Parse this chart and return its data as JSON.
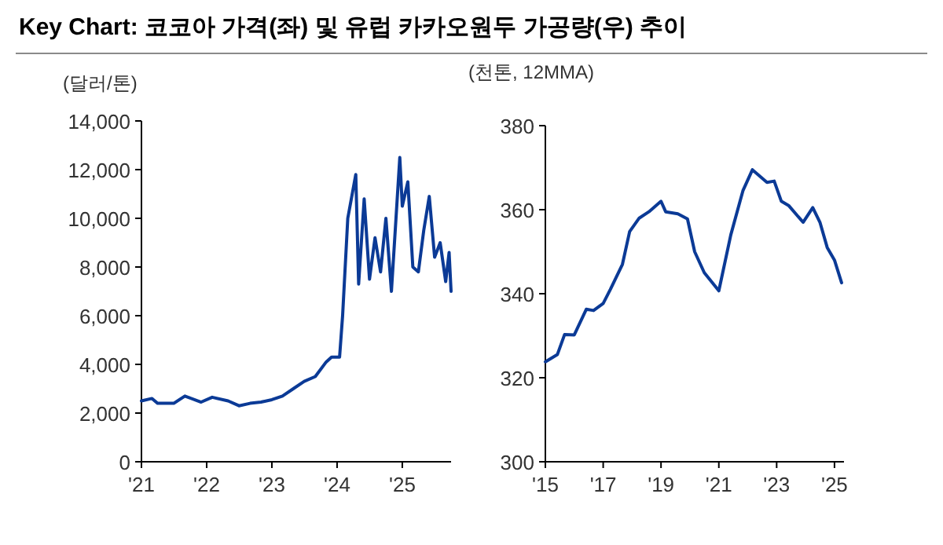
{
  "chart_data": [
    {
      "type": "line",
      "title": "Key Chart: 코코아 가격(좌) 및 유럽 카카오원두 가공량(우) 추이",
      "ylabel": "(달러/톤)",
      "x": [
        "2021-01-01",
        "2021-03-01",
        "2021-04-01",
        "2021-07-01",
        "2021-09-01",
        "2021-12-01",
        "2022-02-01",
        "2022-05-01",
        "2022-07-01",
        "2022-09-01",
        "2022-11-01",
        "2023-01-01",
        "2023-03-01",
        "2023-05-01",
        "2023-07-01",
        "2023-09-01",
        "2023-11-01",
        "2023-12-01",
        "2024-01-15",
        "2024-02-01",
        "2024-03-01",
        "2024-04-15",
        "2024-05-01",
        "2024-06-01",
        "2024-07-01",
        "2024-08-01",
        "2024-09-01",
        "2024-10-01",
        "2024-11-01",
        "2024-12-18",
        "2025-01-01",
        "2025-02-01",
        "2025-03-01",
        "2025-04-01",
        "2025-05-01",
        "2025-06-01",
        "2025-07-01",
        "2025-08-01",
        "2025-09-01",
        "2025-09-20",
        "2025-10-01"
      ],
      "series": [
        {
          "color": "#0b3a96",
          "values": [
            2500,
            2600,
            2400,
            2400,
            2700,
            2450,
            2650,
            2500,
            2300,
            2400,
            2450,
            2550,
            2700,
            3000,
            3300,
            3500,
            4100,
            4300,
            4300,
            6000,
            10000,
            11800,
            7300,
            10800,
            7500,
            9200,
            7800,
            10000,
            7000,
            12500,
            10500,
            11500,
            8000,
            7800,
            9500,
            10900,
            8400,
            9000,
            7400,
            8600,
            7000
          ]
        }
      ],
      "xlim": [
        "2021-01-01",
        "2025-10-01"
      ],
      "xticks": [
        {
          "value": "2021",
          "label": "'21"
        },
        {
          "value": "2022",
          "label": "'22"
        },
        {
          "value": "2023",
          "label": "'23"
        },
        {
          "value": "2024",
          "label": "'24"
        },
        {
          "value": "2025",
          "label": "'25"
        }
      ],
      "ylim": [
        0,
        14000
      ],
      "yticks": [
        0,
        {
          "value": 2000,
          "label": "2,000"
        },
        {
          "value": 4000,
          "label": "4,000"
        },
        {
          "value": 6000,
          "label": "6,000"
        },
        {
          "value": 8000,
          "label": "8,000"
        },
        {
          "value": 10000,
          "label": "10,000"
        },
        {
          "value": 12000,
          "label": "12,000"
        },
        {
          "value": 14000,
          "label": "14,000"
        }
      ],
      "grid": false
    },
    {
      "type": "line",
      "ylabel": "(천톤, 12MMA)",
      "x": [
        "2015-01",
        "2015-06",
        "2015-09",
        "2016-01",
        "2016-06",
        "2016-09",
        "2017-01",
        "2017-04",
        "2017-09",
        "2017-12",
        "2018-04",
        "2018-08",
        "2019-01",
        "2019-03",
        "2019-08",
        "2019-12",
        "2020-03",
        "2020-07",
        "2021-01",
        "2021-06",
        "2021-11",
        "2022-03",
        "2022-09",
        "2022-12",
        "2023-03",
        "2023-06",
        "2023-12",
        "2024-04",
        "2024-07",
        "2024-10",
        "2025-01",
        "2025-04"
      ],
      "series": [
        {
          "color": "#0b3a96",
          "values": [
            323.8,
            325.5,
            330.3,
            330.2,
            336.3,
            336,
            337.7,
            341,
            347,
            354.8,
            358,
            359.5,
            362,
            359.5,
            359,
            357.8,
            350,
            345,
            340.7,
            354,
            364.5,
            369.5,
            366.5,
            366.8,
            362,
            361,
            357,
            360.5,
            357,
            351,
            348,
            342.6
          ]
        }
      ],
      "xlim": [
        "2015-01",
        "2025-05"
      ],
      "xticks": [
        {
          "value": "2015",
          "label": "'15"
        },
        {
          "value": "2017",
          "label": "'17"
        },
        {
          "value": "2019",
          "label": "'19"
        },
        {
          "value": "2021",
          "label": "'21"
        },
        {
          "value": "2023",
          "label": "'23"
        },
        {
          "value": "2025",
          "label": "'25"
        }
      ],
      "ylim": [
        300,
        380
      ],
      "yticks": [
        300,
        320,
        340,
        360,
        380
      ],
      "grid": false
    }
  ]
}
